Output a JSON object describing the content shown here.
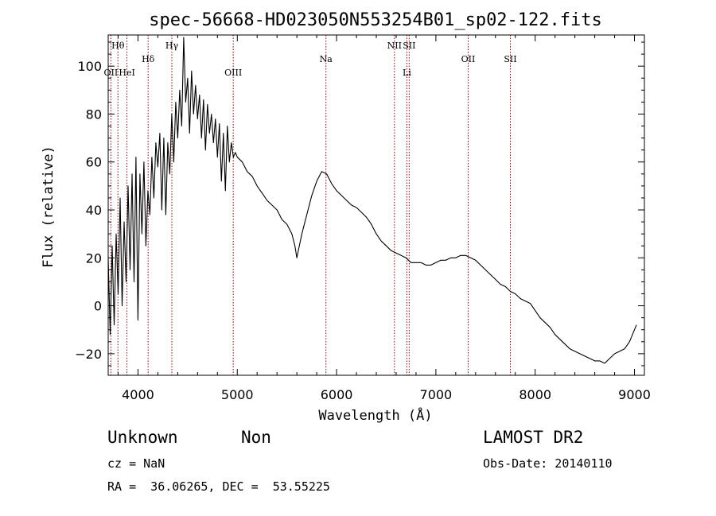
{
  "chart_data": {
    "type": "line",
    "title": "spec-56668-HD023050N553254B01_sp02-122.fits",
    "xlabel": "Wavelength (Å)",
    "ylabel": "Flux (relative)",
    "xlim": [
      3700,
      9100
    ],
    "ylim": [
      -29,
      113
    ],
    "xticks": [
      4000,
      5000,
      6000,
      7000,
      8000,
      9000
    ],
    "yticks": [
      -20,
      0,
      20,
      40,
      60,
      80,
      100
    ],
    "grid": false,
    "line_color": "#000000",
    "marker_color": "#8b0000",
    "spectral_lines": [
      {
        "name": "Hθ",
        "wavelength": 3798,
        "row": 1
      },
      {
        "name": "OII",
        "wavelength": 3727,
        "row": 2
      },
      {
        "name": "HeI",
        "wavelength": 3889,
        "row": 2
      },
      {
        "name": "Hδ",
        "wavelength": 4102,
        "row": 1.5
      },
      {
        "name": "Hγ",
        "wavelength": 4341,
        "row": 1
      },
      {
        "name": "OIII",
        "wavelength": 4959,
        "row": 2
      },
      {
        "name": "Na",
        "wavelength": 5893,
        "row": 1.5
      },
      {
        "name": "NII",
        "wavelength": 6583,
        "row": 1
      },
      {
        "name": "Li",
        "wavelength": 6708,
        "row": 2
      },
      {
        "name": "SII",
        "wavelength": 6731,
        "row": 1
      },
      {
        "name": "OII",
        "wavelength": 7325,
        "row": 1.5
      },
      {
        "name": "SII",
        "wavelength": 7750,
        "row": 1.5
      }
    ],
    "series": [
      {
        "x": [
          3700,
          3720,
          3740,
          3760,
          3780,
          3800,
          3820,
          3840,
          3860,
          3880,
          3900,
          3920,
          3940,
          3960,
          3980,
          4000,
          4020,
          4040,
          4060,
          4080,
          4100,
          4120,
          4140,
          4160,
          4180,
          4200,
          4220,
          4240,
          4260,
          4280,
          4300,
          4320,
          4340,
          4360,
          4380,
          4400,
          4420,
          4440,
          4460,
          4480,
          4500,
          4520,
          4540,
          4560,
          4580,
          4600,
          4620,
          4640,
          4660,
          4680,
          4700,
          4720,
          4740,
          4760,
          4780,
          4800,
          4820,
          4840,
          4860,
          4880,
          4900,
          4920,
          4940,
          4960,
          4980,
          5000,
          5050,
          5100,
          5150,
          5200,
          5250,
          5300,
          5350,
          5400,
          5450,
          5500,
          5550,
          5580,
          5600,
          5620,
          5650,
          5700,
          5750,
          5800,
          5850,
          5900,
          5950,
          6000,
          6050,
          6100,
          6150,
          6200,
          6250,
          6300,
          6350,
          6400,
          6450,
          6500,
          6550,
          6600,
          6650,
          6700,
          6750,
          6800,
          6850,
          6900,
          6950,
          7000,
          7050,
          7100,
          7150,
          7200,
          7250,
          7300,
          7350,
          7400,
          7450,
          7500,
          7550,
          7600,
          7650,
          7700,
          7750,
          7800,
          7850,
          7900,
          7950,
          8000,
          8050,
          8100,
          8150,
          8200,
          8250,
          8300,
          8350,
          8400,
          8450,
          8500,
          8550,
          8600,
          8650,
          8700,
          8750,
          8800,
          8850,
          8900,
          8950,
          9000,
          9020
        ],
        "y": [
          20,
          -12,
          25,
          -8,
          30,
          5,
          45,
          0,
          35,
          10,
          50,
          15,
          55,
          10,
          62,
          -6,
          55,
          30,
          60,
          25,
          48,
          38,
          62,
          45,
          68,
          58,
          72,
          40,
          70,
          38,
          68,
          55,
          80,
          60,
          85,
          70,
          90,
          75,
          112,
          85,
          95,
          72,
          98,
          80,
          92,
          78,
          88,
          70,
          86,
          65,
          84,
          72,
          80,
          68,
          78,
          62,
          76,
          52,
          72,
          48,
          75,
          60,
          68,
          62,
          64,
          62,
          60,
          56,
          54,
          50,
          47,
          44,
          42,
          40,
          36,
          34,
          30,
          25,
          20,
          24,
          30,
          38,
          46,
          52,
          56,
          55,
          51,
          48,
          46,
          44,
          42,
          41,
          39,
          37,
          34,
          30,
          27,
          25,
          23,
          22,
          21,
          20,
          18,
          18,
          18,
          17,
          17,
          18,
          19,
          19,
          20,
          20,
          21,
          21,
          20,
          19,
          17,
          15,
          13,
          11,
          9,
          8,
          6,
          5,
          3,
          2,
          1,
          -2,
          -5,
          -7,
          -9,
          -12,
          -14,
          -16,
          -18,
          -19,
          -20,
          -21,
          -22,
          -23,
          -23,
          -24,
          -22,
          -20,
          -19,
          -18,
          -15,
          -10,
          -8
        ]
      }
    ]
  },
  "info": {
    "object_class": "Unknown",
    "object_subclass": "Non",
    "survey": "LAMOST DR2",
    "cz": "cz = NaN",
    "obs_date": "Obs-Date: 20140110",
    "coords": "RA =  36.06265, DEC =  53.55225"
  }
}
